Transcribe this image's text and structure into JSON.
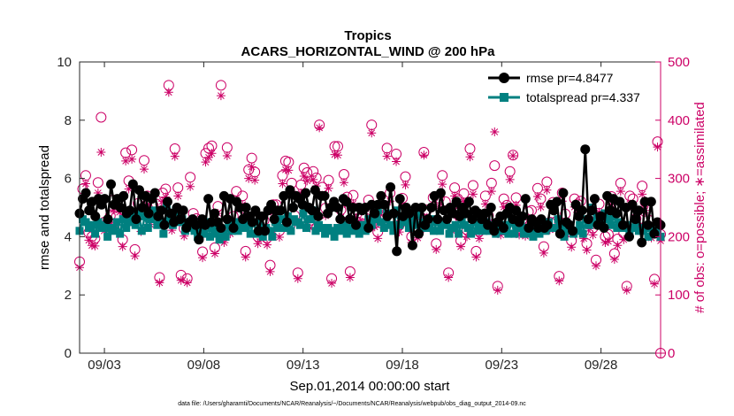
{
  "chart_data": {
    "type": "line",
    "title": "Tropics",
    "subtitle": "ACARS_HORIZONTAL_WIND @ 200 hPa",
    "xlabel": "Sep.01,2014 00:00:00 start",
    "ylabel_left": "rmse and totalspread",
    "ylabel_right": "# of obs: o=possible; ∗=assimilated",
    "x_unit": "days since Sep.01,2014 00:00",
    "xlim": [
      0.75,
      30.0
    ],
    "ylim_left": [
      0,
      10
    ],
    "ylim_right": [
      0,
      500
    ],
    "x_ticks": [
      2,
      7,
      12,
      17,
      22,
      27
    ],
    "x_tick_labels": [
      "09/03",
      "09/08",
      "09/13",
      "09/18",
      "09/23",
      "09/28"
    ],
    "yticks_left": [
      0,
      2,
      4,
      6,
      8,
      10
    ],
    "yticks_right": [
      0,
      100,
      200,
      300,
      400,
      500
    ],
    "colors": {
      "rmse": "#000000",
      "totalspread": "#008080",
      "obs": "#cc0066"
    },
    "legend_position": "top-right",
    "series": [
      {
        "name": "rmse pr=4.8477",
        "axis": "left",
        "marker": "circle",
        "values": [
          4.8,
          5.3,
          5.5,
          4.9,
          5.2,
          4.7,
          5.3,
          5.1,
          5.3,
          4.6,
          5.8,
          5.1,
          5.3,
          5.0,
          5.4,
          4.8,
          4.9,
          5.8,
          4.6,
          5.6,
          5.0,
          5.4,
          4.8,
          5.3,
          5.5,
          4.7,
          4.9,
          4.4,
          5.2,
          4.8,
          4.5,
          5.0,
          4.6,
          4.9,
          4.3,
          4.5,
          4.6,
          4.4,
          3.9,
          4.6,
          4.4,
          5.3,
          4.5,
          4.8,
          4.5,
          4.3,
          5.4,
          4.6,
          5.3,
          4.3,
          5.2,
          5.0,
          4.6,
          5.0,
          4.7,
          4.5,
          4.9,
          4.2,
          4.7,
          4.2,
          4.9,
          5.1,
          4.6,
          4.9,
          4.9,
          5.4,
          4.5,
          5.6,
          5.0,
          5.4,
          5.3,
          5.1,
          5.5,
          5.0,
          4.9,
          5.6,
          4.7,
          5.4,
          5.4,
          4.8,
          5.0,
          5.2,
          5.0,
          4.6,
          5.3,
          5.2,
          4.6,
          5.0,
          4.4,
          5.0,
          4.9,
          5.0,
          4.3,
          5.1,
          4.8,
          5.1,
          5.4,
          5.1,
          4.7,
          5.7,
          4.8,
          3.5,
          5.3,
          4.7,
          5.0,
          4.8,
          3.7,
          5.0,
          4.1,
          5.0,
          4.4,
          4.6,
          5.0,
          5.4,
          4.6,
          5.5,
          4.9,
          4.6,
          5.0,
          4.8,
          5.2,
          4.7,
          5.0,
          4.8,
          5.2,
          4.6,
          4.9,
          4.8,
          4.6,
          4.8,
          4.4,
          5.0,
          4.2,
          4.5,
          4.7,
          4.3,
          4.8,
          5.0,
          4.6,
          4.9,
          4.5,
          4.7,
          5.3,
          4.3,
          4.6,
          4.5,
          4.3,
          4.6,
          4.3,
          4.4,
          5.1,
          4.9,
          5.2,
          4.1,
          5.5,
          4.5,
          4.4,
          4.2,
          5.1,
          4.7,
          4.9,
          7.0,
          4.6,
          4.9,
          5.3,
          4.4,
          4.7,
          4.3,
          5.4,
          4.9,
          5.3,
          4.8,
          5.2,
          4.4,
          5.0,
          4.0,
          5.1,
          4.6,
          4.9,
          3.8,
          5.2,
          4.4,
          5.2,
          4.1,
          4.5,
          4.4
        ]
      },
      {
        "name": "totalspread pr=4.337",
        "axis": "left",
        "marker": "square",
        "values": [
          4.2,
          4.6,
          4.5,
          4.3,
          4.4,
          4.1,
          4.5,
          4.3,
          4.4,
          4.0,
          4.3,
          4.2,
          4.5,
          4.1,
          4.6,
          4.3,
          4.5,
          4.7,
          4.4,
          4.8,
          4.2,
          4.7,
          4.3,
          4.6,
          4.9,
          4.4,
          4.5,
          4.1,
          5.0,
          4.6,
          4.4,
          4.9,
          4.5,
          4.6,
          4.2,
          4.4,
          4.3,
          4.2,
          4.0,
          4.4,
          4.1,
          4.5,
          4.0,
          4.3,
          4.1,
          3.9,
          4.1,
          4.0,
          4.4,
          4.2,
          4.5,
          4.2,
          4.4,
          4.3,
          4.4,
          4.1,
          4.5,
          4.1,
          4.5,
          4.0,
          4.3,
          4.2,
          4.0,
          4.5,
          4.3,
          4.6,
          4.3,
          4.7,
          4.2,
          4.6,
          4.5,
          4.4,
          4.8,
          4.3,
          4.6,
          4.9,
          4.2,
          4.4,
          4.3,
          4.1,
          4.3,
          4.2,
          4.0,
          4.3,
          4.2,
          4.4,
          4.1,
          4.3,
          4.2,
          4.3,
          4.1,
          4.4,
          4.2,
          4.6,
          4.4,
          4.6,
          4.9,
          4.5,
          4.3,
          4.8,
          4.4,
          4.2,
          4.9,
          4.4,
          4.7,
          4.5,
          4.3,
          4.7,
          4.4,
          4.8,
          4.3,
          4.5,
          4.3,
          4.6,
          4.2,
          4.5,
          4.2,
          4.4,
          4.5,
          4.1,
          4.3,
          4.4,
          4.1,
          4.6,
          4.4,
          4.3,
          4.1,
          4.5,
          4.2,
          4.4,
          4.2,
          4.5,
          4.2,
          4.4,
          4.1,
          4.3,
          4.2,
          4.4,
          4.1,
          4.5,
          4.1,
          4.3,
          4.4,
          4.1,
          4.3,
          4.1,
          4.0,
          4.2,
          4.1,
          4.4,
          4.2,
          4.5,
          4.3,
          4.3,
          4.6,
          4.4,
          4.0,
          4.2,
          4.3,
          4.1,
          4.2,
          4.4,
          4.1,
          4.6,
          4.4,
          5.0,
          4.5,
          4.7,
          4.4,
          4.8,
          4.6,
          4.4,
          4.7,
          4.3,
          4.5,
          4.3,
          4.4,
          4.1,
          4.3,
          4.5,
          4.2,
          4.2,
          4.3,
          4.0,
          4.3,
          4.1,
          4.2,
          4.0
        ]
      },
      {
        "name": "# of obs possible",
        "axis": "right",
        "marker": "open-circle",
        "values": [
          157,
          282,
          305,
          207,
          200,
          197,
          293,
          405,
          225,
          223,
          236,
          263,
          235,
          257,
          195,
          344,
          296,
          349,
          178,
          257,
          223,
          331,
          270,
          235,
          253,
          256,
          130,
          275,
          282,
          460,
          224,
          351,
          284,
          134,
          214,
          128,
          302,
          240,
          231,
          210,
          174,
          343,
          352,
          356,
          181,
          252,
          460,
          200,
          353,
          216,
          235,
          278,
          235,
          270,
          175,
          315,
          335,
          311,
          200,
          208,
          228,
          198,
          151,
          255,
          255,
          210,
          305,
          330,
          328,
          292,
          236,
          138,
          289,
          318,
          310,
          228,
          312,
          301,
          392,
          285,
          249,
          297,
          128,
          355,
          355,
          246,
          307,
          268,
          140,
          271,
          246,
          219,
          238,
          232,
          263,
          392,
          230,
          208,
          251,
          237,
          352,
          275,
          228,
          342,
          220,
          266,
          303,
          234,
          200,
          234,
          210,
          225,
          345,
          246,
          227,
          267,
          188,
          266,
          305,
          260,
          138,
          225,
          284,
          265,
          193,
          274,
          212,
          351,
          288,
          175,
          209,
          232,
          270,
          236,
          292,
          322,
          115,
          215,
          265,
          254,
          312,
          340,
          267,
          214,
          229,
          213,
          243,
          245,
          225,
          283,
          265,
          183,
          294,
          225,
          259,
          226,
          132,
          275,
          239,
          220,
          193,
          265,
          256,
          261,
          209,
          188,
          227,
          215,
          160,
          256,
          233,
          200,
          204,
          269,
          171,
          196,
          292,
          206,
          115,
          270,
          265,
          231,
          230,
          287,
          259,
          229,
          210,
          127,
          363,
          204
        ]
      },
      {
        "name": "# of obs assimilated",
        "axis": "right",
        "marker": "asterisk",
        "values": [
          147,
          267,
          291,
          194,
          185,
          184,
          275,
          345,
          210,
          211,
          221,
          246,
          221,
          242,
          183,
          330,
          282,
          333,
          167,
          242,
          209,
          316,
          255,
          221,
          238,
          241,
          121,
          261,
          268,
          448,
          211,
          338,
          270,
          125,
          201,
          121,
          286,
          227,
          218,
          198,
          164,
          328,
          336,
          343,
          171,
          240,
          442,
          190,
          339,
          205,
          221,
          263,
          222,
          255,
          165,
          300,
          320,
          297,
          188,
          196,
          216,
          186,
          140,
          242,
          242,
          199,
          291,
          315,
          314,
          278,
          223,
          128,
          275,
          304,
          296,
          215,
          298,
          287,
          387,
          271,
          236,
          283,
          120,
          341,
          340,
          233,
          293,
          255,
          130,
          257,
          233,
          206,
          225,
          219,
          250,
          378,
          217,
          197,
          238,
          224,
          338,
          261,
          215,
          329,
          208,
          252,
          289,
          221,
          190,
          221,
          198,
          212,
          340,
          233,
          214,
          252,
          178,
          252,
          290,
          246,
          130,
          211,
          270,
          251,
          183,
          260,
          200,
          337,
          273,
          165,
          197,
          218,
          256,
          223,
          278,
          380,
          108,
          203,
          251,
          240,
          298,
          339,
          254,
          203,
          216,
          201,
          229,
          231,
          213,
          269,
          251,
          172,
          280,
          212,
          245,
          213,
          124,
          261,
          225,
          207,
          182,
          251,
          242,
          247,
          197,
          177,
          214,
          203,
          150,
          242,
          220,
          190,
          192,
          255,
          161,
          185,
          278,
          195,
          108,
          256,
          251,
          218,
          216,
          273,
          245,
          216,
          198,
          119,
          354,
          193
        ]
      }
    ],
    "footer_text": "data file: /Users/gharamti/Documents/NCAR/Reanalysis/~/Documents/NCAR/Reanalysis/webpub/obs_diag_output_2014-09.nc"
  }
}
